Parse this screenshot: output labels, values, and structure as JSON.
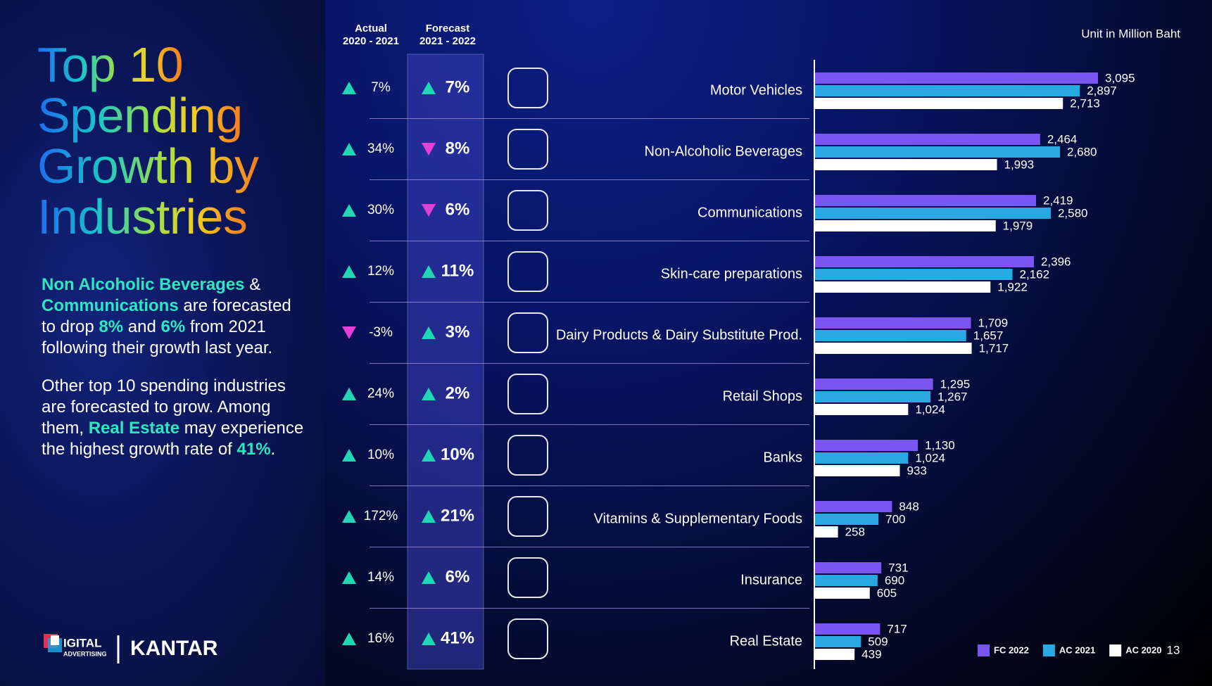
{
  "title": "Top 10 Spending Growth by Industries",
  "commentary": [
    [
      {
        "text": "Non Alcoholic Beverages",
        "highlight": true
      },
      {
        "text": " & ",
        "highlight": false
      },
      {
        "text": "Communications",
        "highlight": true
      },
      {
        "text": " are forecasted to drop ",
        "highlight": false
      },
      {
        "text": "8%",
        "highlight": true
      },
      {
        "text": " and ",
        "highlight": false
      },
      {
        "text": "6%",
        "highlight": true
      },
      {
        "text": " from 2021 following their growth last year.",
        "highlight": false
      }
    ],
    [
      {
        "text": "Other top 10 spending industries are forecasted to grow. Among them, ",
        "highlight": false
      },
      {
        "text": "Real Estate",
        "highlight": true
      },
      {
        "text": " may experience the highest growth rate of ",
        "highlight": false
      },
      {
        "text": "41%",
        "highlight": true
      },
      {
        "text": ".",
        "highlight": false
      }
    ]
  ],
  "logos": {
    "daat": [
      "IGITAL",
      "ADVERTISING"
    ],
    "kantar": "KANTAR"
  },
  "unit": "Unit in Million Baht",
  "page_number": "13",
  "table": {
    "columns": [
      [
        "Actual",
        "2020 - 2021"
      ],
      [
        "Forecast",
        "2021 - 2022"
      ]
    ],
    "actual": [
      "7%",
      "34%",
      "30%",
      "12%",
      "-3%",
      "24%",
      "10%",
      "172%",
      "14%",
      "16%"
    ],
    "actual_direction": [
      "up",
      "up",
      "up",
      "up",
      "down",
      "up",
      "up",
      "up",
      "up",
      "up"
    ],
    "forecast": [
      "7%",
      "8%",
      "6%",
      "11%",
      "3%",
      "2%",
      "10%",
      "21%",
      "6%",
      "41%"
    ],
    "forecast_direction": [
      "up",
      "down",
      "down",
      "up",
      "up",
      "up",
      "up",
      "up",
      "up",
      "up"
    ]
  },
  "chart_data": {
    "type": "bar",
    "orientation": "horizontal",
    "categories": [
      "Motor Vehicles",
      "Non-Alcoholic Beverages",
      "Communications",
      "Skin-care preparations",
      "Dairy Products & Dairy Substitute Prod.",
      "Retail Shops",
      "Banks",
      "Vitamins & Supplementary Foods",
      "Insurance",
      "Real Estate"
    ],
    "series": [
      {
        "name": "FC 2022",
        "color": "#7b55f2",
        "values": [
          3095,
          2464,
          2419,
          2396,
          1709,
          1295,
          1130,
          848,
          731,
          717
        ],
        "value_labels": [
          "3,095",
          "2,464",
          "2,419",
          "2,396",
          "1,709",
          "1,295",
          "1,130",
          "848",
          "731",
          "717"
        ]
      },
      {
        "name": "AC 2021",
        "color": "#29a9e1",
        "values": [
          2897,
          2680,
          2580,
          2162,
          1657,
          1267,
          1024,
          700,
          690,
          509
        ],
        "value_labels": [
          "2,897",
          "2,680",
          "2,580",
          "2,162",
          "1,657",
          "1,267",
          "1,024",
          "700",
          "690",
          "509"
        ]
      },
      {
        "name": "AC 2020",
        "color": "#ffffff",
        "values": [
          2713,
          1993,
          1979,
          1922,
          1717,
          1024,
          933,
          258,
          605,
          439
        ],
        "value_labels": [
          "2,713",
          "1,993",
          "1,979",
          "1,922",
          "1,717",
          "1,024",
          "933",
          "258",
          "605",
          "439"
        ]
      }
    ],
    "legend": "lower right"
  }
}
